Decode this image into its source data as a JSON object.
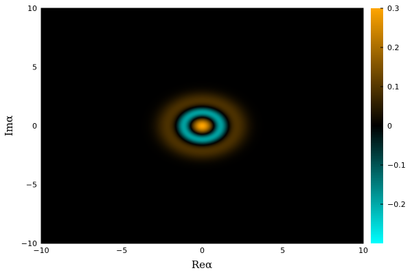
{
  "chart_data": {
    "type": "heatmap",
    "title": "",
    "xlabel": "Reα",
    "ylabel": "Imα",
    "xlim": [
      -10,
      10
    ],
    "ylim": [
      -10,
      10
    ],
    "x_ticks": [
      {
        "value": -10,
        "label": "−10"
      },
      {
        "value": -5,
        "label": "−5"
      },
      {
        "value": 0,
        "label": "0"
      },
      {
        "value": 5,
        "label": "5"
      },
      {
        "value": 10,
        "label": "10"
      }
    ],
    "y_ticks": [
      {
        "value": -10,
        "label": "−10"
      },
      {
        "value": -5,
        "label": "−5"
      },
      {
        "value": 0,
        "label": "0"
      },
      {
        "value": 5,
        "label": "5"
      },
      {
        "value": 10,
        "label": "10"
      }
    ],
    "colorbar": {
      "range": [
        -0.3,
        0.3
      ],
      "colors": {
        "min": "#00ffff",
        "mid": "#000000",
        "max": "#ffa500"
      },
      "ticks": [
        {
          "value": 0.3,
          "label": "0.3"
        },
        {
          "value": 0.2,
          "label": "0.2"
        },
        {
          "value": 0.1,
          "label": "0.1"
        },
        {
          "value": 0.0,
          "label": "0"
        },
        {
          "value": -0.1,
          "label": "−0.1"
        },
        {
          "value": -0.2,
          "label": "−0.2"
        }
      ]
    },
    "field": {
      "description_terms": [
        {
          "amplitude": 0.3,
          "sigma": 0.45
        },
        {
          "amplitude": -0.22,
          "ring_radius": 1.15,
          "ring_width": 0.32
        },
        {
          "amplitude": 0.09,
          "ring_radius": 2.1,
          "ring_width": 0.55
        }
      ],
      "center": [
        0,
        0
      ]
    }
  }
}
